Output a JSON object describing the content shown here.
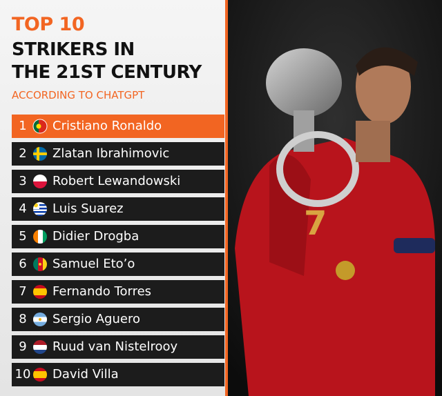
{
  "header": {
    "title": "TOP 10",
    "line1": "STRIKERS IN",
    "line2": "THE 21ST CENTURY",
    "subtitle": "ACCORDING TO CHATGPT"
  },
  "list": [
    {
      "rank": "1",
      "name": "Cristiano Ronaldo"
    },
    {
      "rank": "2",
      "name": "Zlatan Ibrahimovic"
    },
    {
      "rank": "3",
      "name": "Robert Lewandowski"
    },
    {
      "rank": "4",
      "name": "Luis Suarez"
    },
    {
      "rank": "5",
      "name": "Didier Drogba"
    },
    {
      "rank": "6",
      "name": "Samuel Eto’o"
    },
    {
      "rank": "7",
      "name": "Fernando Torres"
    },
    {
      "rank": "8",
      "name": "Sergio Aguero"
    },
    {
      "rank": "9",
      "name": "Ruud van Nistelrooy"
    },
    {
      "rank": "10",
      "name": "David Villa"
    }
  ]
}
